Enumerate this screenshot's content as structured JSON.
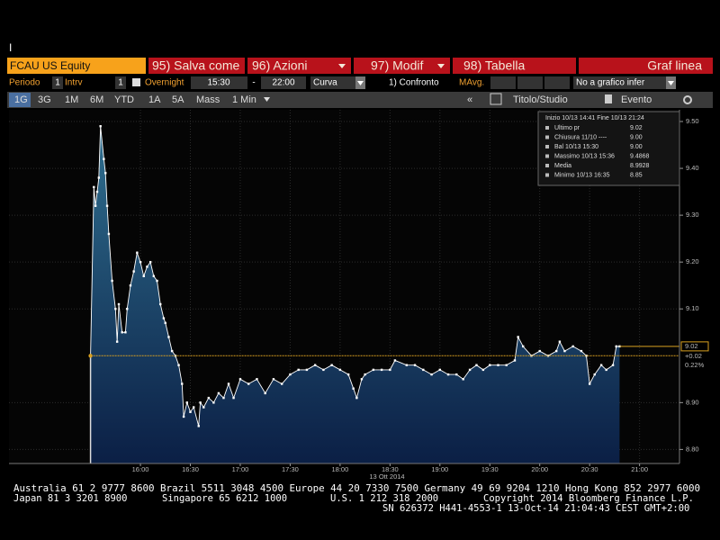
{
  "cursor": "I",
  "security": "FCAU US Equity",
  "menu": [
    "95) Salva come",
    "96) Azioni",
    "97) Modif",
    "98) Tabella",
    "Graf linea"
  ],
  "settings": {
    "period_label": "Periodo",
    "period": "1",
    "interval_label": "Intrv",
    "interval": "1",
    "overnight": "Overnight",
    "start": "15:30",
    "dash": "-",
    "end": "22:00",
    "style": "Curva",
    "compare": "1) Confronto",
    "mavg": "MAvg.",
    "lower": "No a grafico infer"
  },
  "tabs": [
    "1G",
    "3G",
    "1M",
    "6M",
    "YTD",
    "1A",
    "5A",
    "Mass",
    "1 Min"
  ],
  "tools": [
    "Titolo/Studio",
    "Evento"
  ],
  "chart_data": {
    "type": "area",
    "x_label": "13 Ott 2014",
    "x": [
      "15:30",
      "15:32",
      "15:33",
      "15:34",
      "15:35",
      "15:36",
      "15:38",
      "15:39",
      "15:40",
      "15:41",
      "15:43",
      "15:45",
      "15:46",
      "15:47",
      "15:49",
      "15:51",
      "15:52",
      "15:54",
      "15:56",
      "15:58",
      "16:00",
      "16:02",
      "16:04",
      "16:06",
      "16:08",
      "16:10",
      "16:12",
      "16:14",
      "16:15",
      "16:17",
      "16:19",
      "16:21",
      "16:23",
      "16:25",
      "16:26",
      "16:28",
      "16:30",
      "16:32",
      "16:35",
      "16:36",
      "16:38",
      "16:41",
      "16:44",
      "16:47",
      "16:50",
      "16:53",
      "16:56",
      "17:00",
      "17:05",
      "17:10",
      "17:15",
      "17:20",
      "17:25",
      "17:30",
      "17:35",
      "17:40",
      "17:45",
      "17:50",
      "17:55",
      "18:00",
      "18:05",
      "18:08",
      "18:10",
      "18:13",
      "18:15",
      "18:20",
      "18:25",
      "18:30",
      "18:33",
      "18:40",
      "18:45",
      "18:50",
      "18:55",
      "19:00",
      "19:05",
      "19:10",
      "19:14",
      "19:18",
      "19:22",
      "19:26",
      "19:30",
      "19:35",
      "19:40",
      "19:45",
      "19:47",
      "19:50",
      "19:55",
      "20:00",
      "20:05",
      "20:10",
      "20:12",
      "20:15",
      "20:20",
      "20:25",
      "20:28",
      "20:30",
      "20:33",
      "20:37",
      "20:40",
      "20:44",
      "20:46",
      "20:48"
    ],
    "values": [
      9.0,
      9.36,
      9.32,
      9.35,
      9.38,
      9.49,
      9.42,
      9.39,
      9.32,
      9.26,
      9.16,
      9.1,
      9.03,
      9.11,
      9.05,
      9.05,
      9.1,
      9.15,
      9.18,
      9.22,
      9.2,
      9.17,
      9.19,
      9.2,
      9.17,
      9.16,
      9.11,
      9.08,
      9.07,
      9.04,
      9.01,
      9.0,
      8.98,
      8.94,
      8.87,
      8.9,
      8.88,
      8.89,
      8.85,
      8.9,
      8.89,
      8.91,
      8.9,
      8.92,
      8.91,
      8.94,
      8.91,
      8.95,
      8.94,
      8.95,
      8.92,
      8.95,
      8.94,
      8.96,
      8.97,
      8.97,
      8.98,
      8.97,
      8.98,
      8.97,
      8.96,
      8.93,
      8.91,
      8.95,
      8.96,
      8.97,
      8.97,
      8.97,
      8.99,
      8.98,
      8.98,
      8.97,
      8.96,
      8.97,
      8.96,
      8.96,
      8.95,
      8.97,
      8.98,
      8.97,
      8.98,
      8.98,
      8.98,
      8.99,
      9.04,
      9.02,
      9.0,
      9.01,
      9.0,
      9.01,
      9.03,
      9.01,
      9.02,
      9.01,
      9.0,
      8.94,
      8.96,
      8.98,
      8.97,
      8.98,
      9.02,
      9.02
    ],
    "color": "#ffffff",
    "fill": [
      "#2f6f8f",
      "#0b1f45"
    ],
    "xlim": [
      "14:41",
      "21:24"
    ],
    "xticks": [
      "16:00",
      "16:30",
      "17:00",
      "17:30",
      "18:00",
      "18:30",
      "19:00",
      "19:30",
      "20:00",
      "20:30",
      "21:00"
    ],
    "ylim": [
      8.77,
      9.525
    ],
    "yticks": [
      {
        "value": 9.5,
        "label": "9.50"
      },
      {
        "value": 9.4,
        "label": "9.40"
      },
      {
        "value": 9.3,
        "label": "9.30"
      },
      {
        "value": 9.2,
        "label": "9.20"
      },
      {
        "value": 9.1,
        "label": "9.10"
      },
      {
        "value": 8.9,
        "label": "8.90"
      },
      {
        "value": 8.8,
        "label": "8.80"
      }
    ],
    "grid": true,
    "reference_line": 9,
    "last_price": 9.02,
    "change": {
      "value": 0.02,
      "label": "+0.02"
    },
    "change_pct": {
      "value": 0.22,
      "label": "0.22%"
    }
  },
  "info_box": {
    "range": "Inizio 10/13 14:41  Fine 10/13 21:24",
    "rows": [
      [
        "Ultimo pr",
        "9.02"
      ],
      [
        "Chiusura 11/10 ----",
        "9.00"
      ],
      [
        "Bal 10/13 15:30",
        "9.00"
      ],
      [
        "Massimo 10/13 15:36",
        "9.4868"
      ],
      [
        "Media",
        "8.9928"
      ],
      [
        "Minimo 10/13 16:35",
        "8.85"
      ]
    ]
  },
  "footer": [
    "Australia 61 2 9777 8600 Brazil 5511 3048 4500 Europe 44 20 7330 7500 Germany 49 69 9204 1210 Hong Kong 852 2977 6000",
    "Japan 81 3 3201 8900",
    "Singapore 65 6212 1000",
    "U.S. 1 212 318 2000",
    "Copyright 2014 Bloomberg Finance L.P.",
    "SN 626372 H441-4553-1 13-Oct-14 21:04:43 CEST GMT+2:00"
  ]
}
